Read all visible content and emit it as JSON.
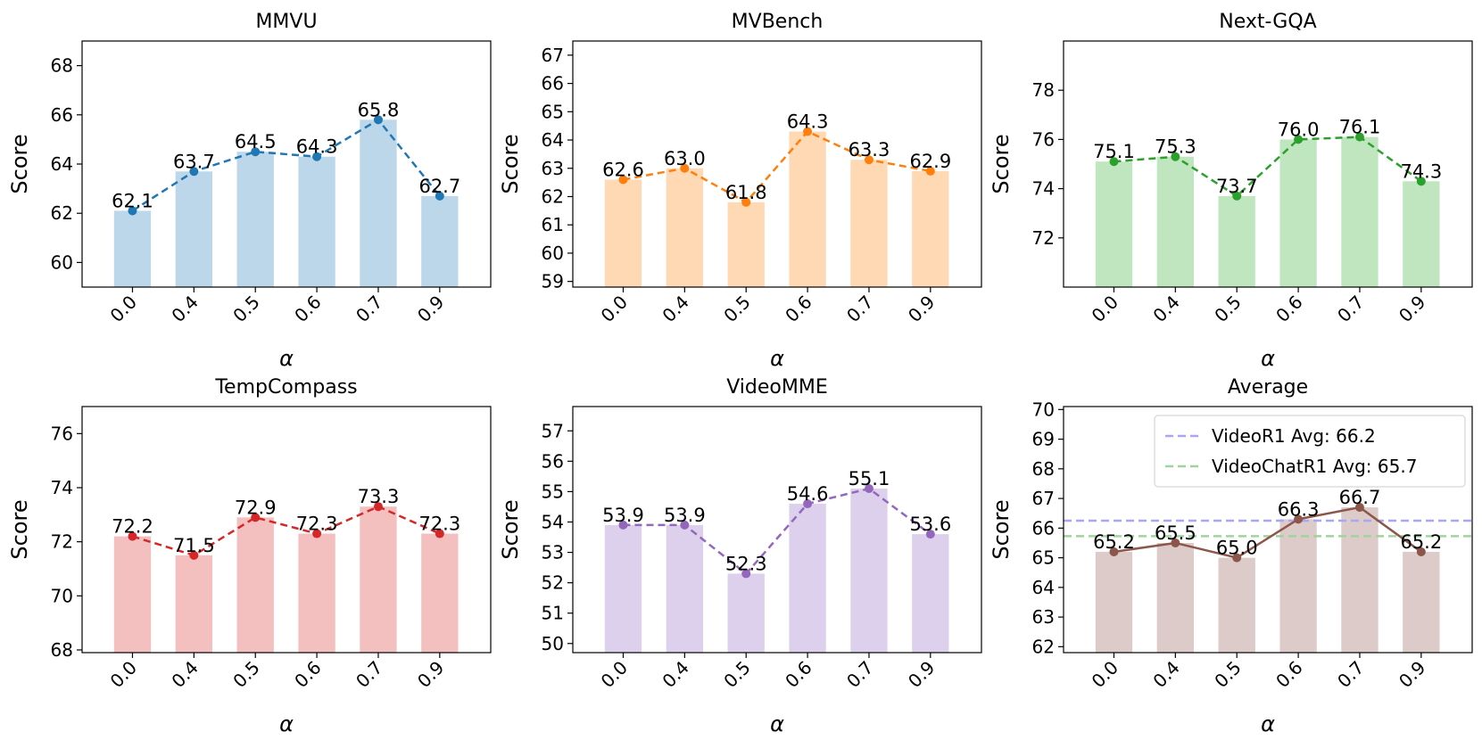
{
  "chart_data": [
    {
      "type": "bar",
      "title": "MMVU",
      "xlabel": "α",
      "ylabel": "Score",
      "categories": [
        "0.0",
        "0.4",
        "0.5",
        "0.6",
        "0.7",
        "0.9"
      ],
      "values": [
        62.1,
        63.7,
        64.5,
        64.3,
        65.8,
        62.7
      ],
      "value_labels": [
        "62.1",
        "63.7",
        "64.5",
        "64.3",
        "65.8",
        "62.7"
      ],
      "ylim": [
        59.0,
        69.0
      ],
      "yticks": [
        "60",
        "62",
        "64",
        "66",
        "68"
      ],
      "line_style": "dashed",
      "line_color": "#1f77b4",
      "bar_color": "#bcd6ea"
    },
    {
      "type": "bar",
      "title": "MVBench",
      "xlabel": "α",
      "ylabel": "Score",
      "categories": [
        "0.0",
        "0.4",
        "0.5",
        "0.6",
        "0.7",
        "0.9"
      ],
      "values": [
        62.6,
        63.0,
        61.8,
        64.3,
        63.3,
        62.9
      ],
      "value_labels": [
        "62.6",
        "63.0",
        "61.8",
        "64.3",
        "63.3",
        "62.9"
      ],
      "ylim": [
        58.8,
        67.5
      ],
      "yticks": [
        "59",
        "60",
        "61",
        "62",
        "63",
        "64",
        "65",
        "66",
        "67"
      ],
      "line_style": "dashed",
      "line_color": "#ff7f0e",
      "bar_color": "#ffd9b4"
    },
    {
      "type": "bar",
      "title": "Next-GQA",
      "xlabel": "α",
      "ylabel": "Score",
      "categories": [
        "0.0",
        "0.4",
        "0.5",
        "0.6",
        "0.7",
        "0.9"
      ],
      "values": [
        75.1,
        75.3,
        73.7,
        76.0,
        76.1,
        74.3
      ],
      "value_labels": [
        "75.1",
        "75.3",
        "73.7",
        "76.0",
        "76.1",
        "74.3"
      ],
      "ylim": [
        70.0,
        80.0
      ],
      "yticks": [
        "72",
        "74",
        "76",
        "78"
      ],
      "line_style": "dashed",
      "line_color": "#2ca02c",
      "bar_color": "#c0e6bf"
    },
    {
      "type": "bar",
      "title": "TempCompass",
      "xlabel": "α",
      "ylabel": "Score",
      "categories": [
        "0.0",
        "0.4",
        "0.5",
        "0.6",
        "0.7",
        "0.9"
      ],
      "values": [
        72.2,
        71.5,
        72.9,
        72.3,
        73.3,
        72.3
      ],
      "value_labels": [
        "72.2",
        "71.5",
        "72.9",
        "72.3",
        "73.3",
        "72.3"
      ],
      "ylim": [
        67.9,
        77.0
      ],
      "yticks": [
        "68",
        "70",
        "72",
        "74",
        "76"
      ],
      "line_style": "dashed",
      "line_color": "#d62728",
      "bar_color": "#f3bfbf"
    },
    {
      "type": "bar",
      "title": "VideoMME",
      "xlabel": "α",
      "ylabel": "Score",
      "categories": [
        "0.0",
        "0.4",
        "0.5",
        "0.6",
        "0.7",
        "0.9"
      ],
      "values": [
        53.9,
        53.9,
        52.3,
        54.6,
        55.1,
        53.6
      ],
      "value_labels": [
        "53.9",
        "53.9",
        "52.3",
        "54.6",
        "55.1",
        "53.6"
      ],
      "ylim": [
        49.7,
        57.8
      ],
      "yticks": [
        "50",
        "51",
        "52",
        "53",
        "54",
        "55",
        "56",
        "57"
      ],
      "line_style": "dashed",
      "line_color": "#9467bd",
      "bar_color": "#ddd0ec"
    },
    {
      "type": "bar",
      "title": "Average",
      "xlabel": "α",
      "ylabel": "Score",
      "categories": [
        "0.0",
        "0.4",
        "0.5",
        "0.6",
        "0.7",
        "0.9"
      ],
      "values": [
        65.2,
        65.5,
        65.0,
        66.3,
        66.7,
        65.2
      ],
      "value_labels": [
        "65.2",
        "65.5",
        "65.0",
        "66.3",
        "66.7",
        "65.2"
      ],
      "ylim": [
        61.8,
        70.1
      ],
      "yticks": [
        "62",
        "63",
        "64",
        "65",
        "66",
        "67",
        "68",
        "69",
        "70"
      ],
      "line_style": "solid",
      "line_color": "#8c564b",
      "bar_color": "#dccbc8",
      "reference_lines": [
        {
          "label": "VideoR1 Avg: 66.2",
          "value": 66.25,
          "color": "#a9a6f5"
        },
        {
          "label": "VideoChatR1 Avg: 65.7",
          "value": 65.73,
          "color": "#9fd59c"
        }
      ],
      "legend_position": "top-right"
    }
  ]
}
